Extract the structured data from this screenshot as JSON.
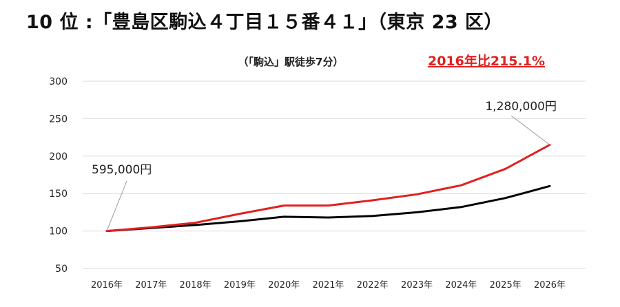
{
  "heading": "10 位 :「豊島区駒込４丁目１５番４１」（東京 23 区）",
  "chart_data": {
    "type": "line",
    "subtitle": "（「駒込」駅徒歩7分）",
    "highlight": "2016年比215.1%",
    "categories": [
      "2016年",
      "2017年",
      "2018年",
      "2019年",
      "2020年",
      "2021年",
      "2022年",
      "2023年",
      "2024年",
      "2025年",
      "2026年"
    ],
    "series": [
      {
        "color": "#e02020",
        "values": [
          100,
          105,
          111,
          123,
          134,
          134,
          141,
          149,
          161,
          183,
          215.1
        ]
      },
      {
        "color": "#000000",
        "values": [
          100,
          104,
          108,
          113,
          119,
          118,
          120,
          125,
          132,
          144,
          160
        ]
      }
    ],
    "ylim": [
      50,
      300
    ],
    "yticks": [
      "50",
      "100",
      "150",
      "200",
      "250",
      "300"
    ],
    "grid": true,
    "annotations": [
      {
        "text": "595,000円",
        "category": "2016年",
        "value": 100
      },
      {
        "text": "1,280,000円",
        "category": "2026年",
        "value": 215.1
      }
    ]
  }
}
